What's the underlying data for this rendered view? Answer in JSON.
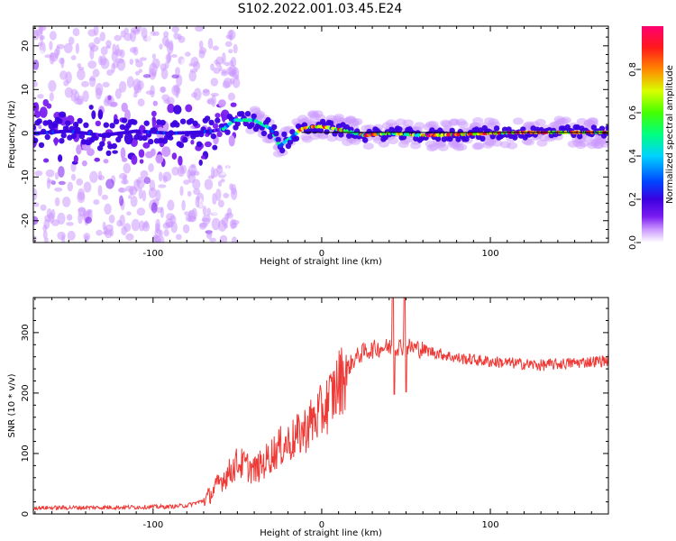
{
  "title": "S102.2022.001.03.45.E24",
  "colors": {
    "snr_line": "#ee3a36",
    "ridge": "#000000",
    "axes": "#000000"
  },
  "chart_data": [
    {
      "type": "heatmap",
      "xlabel": "Height of straight line (km)",
      "ylabel": "Frequency (Hz)",
      "xlim": [
        -171,
        170
      ],
      "ylim": [
        -25,
        24.5
      ],
      "x_ticks": [
        -100,
        0,
        100
      ],
      "y_ticks": [
        -20,
        -10,
        0,
        10,
        20
      ],
      "colorbar": {
        "label": "Normalized spectral amplitude",
        "range": [
          0,
          1
        ],
        "ticks": [
          "0.0",
          "0.2",
          "0.4",
          "0.6",
          "0.8"
        ],
        "colormap": [
          "#ffffff",
          "#cc99ff",
          "#7a1cf0",
          "#3b00e0",
          "#0045ff",
          "#00d2ff",
          "#00ff80",
          "#44ff00",
          "#d8ff00",
          "#ff8800",
          "#ff1a1a",
          "#ff0070"
        ]
      },
      "ridge_line": {
        "x": [
          -12,
          170
        ],
        "y": [
          0.2,
          0.2
        ]
      },
      "ridge_trace": {
        "x": [
          -170,
          -150,
          -130,
          -110,
          -90,
          -75,
          -65,
          -58,
          -52,
          -45,
          -40,
          -35,
          -30,
          -25,
          -22,
          -18,
          -12,
          -5,
          0,
          8,
          15,
          25,
          40,
          60,
          80,
          100,
          120,
          150,
          170
        ],
        "y": [
          0,
          0.5,
          -0.5,
          0.5,
          0,
          0.2,
          0.5,
          1,
          3,
          3,
          3,
          2,
          1,
          -3,
          -2,
          -1,
          1,
          1.5,
          1.5,
          1,
          0.5,
          -0.5,
          0,
          -0.5,
          -0.3,
          0,
          0.2,
          0.2,
          0.2
        ]
      },
      "grid": false
    },
    {
      "type": "line",
      "xlabel": "Height of straight line (km)",
      "ylabel": "SNR (10 * v/v)",
      "xlim": [
        -171,
        170
      ],
      "ylim": [
        0,
        358
      ],
      "x_ticks": [
        -100,
        0,
        100
      ],
      "y_ticks": [
        0,
        100,
        200,
        300
      ],
      "envelope": {
        "x": [
          -170,
          -120,
          -90,
          -80,
          -70,
          -65,
          -60,
          -55,
          -50,
          -45,
          -40,
          -35,
          -30,
          -25,
          -20,
          -15,
          -10,
          -5,
          0,
          5,
          10,
          15,
          20,
          25,
          30,
          35,
          40,
          45,
          50,
          55,
          60,
          70,
          80,
          90,
          100,
          110,
          120,
          130,
          140,
          150,
          160,
          170
        ],
        "y": [
          10,
          11,
          12,
          14,
          22,
          35,
          55,
          68,
          85,
          80,
          72,
          82,
          98,
          110,
          118,
          126,
          140,
          155,
          168,
          190,
          215,
          240,
          258,
          268,
          272,
          275,
          276,
          277,
          277,
          275,
          272,
          265,
          258,
          255,
          252,
          250,
          248,
          246,
          248,
          250,
          252,
          254
        ]
      },
      "spikes": [
        {
          "x": 42,
          "y": 358
        },
        {
          "x": 43,
          "y": 198
        },
        {
          "x": 49,
          "y": 358
        },
        {
          "x": 50,
          "y": 202
        }
      ],
      "grid": false
    }
  ]
}
